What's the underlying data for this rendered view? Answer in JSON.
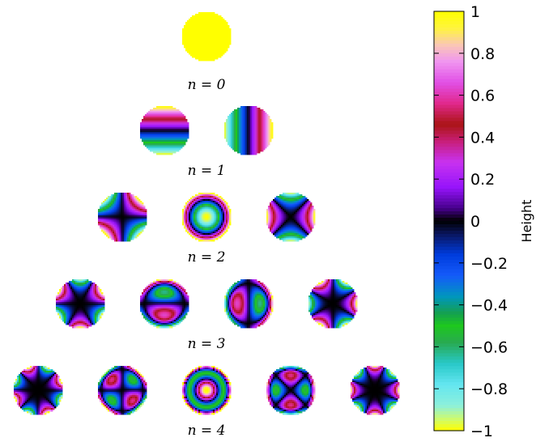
{
  "figure": {
    "rows": [
      {
        "label": "n = 0",
        "n": 0,
        "modes": [
          {
            "m": 0
          }
        ]
      },
      {
        "label": "n = 1",
        "n": 1,
        "modes": [
          {
            "m": -1
          },
          {
            "m": 1
          }
        ]
      },
      {
        "label": "n = 2",
        "n": 2,
        "modes": [
          {
            "m": -2
          },
          {
            "m": 0
          },
          {
            "m": 2
          }
        ]
      },
      {
        "label": "n = 3",
        "n": 3,
        "modes": [
          {
            "m": -3
          },
          {
            "m": -1
          },
          {
            "m": 1
          },
          {
            "m": 3
          }
        ]
      },
      {
        "label": "n = 4",
        "n": 4,
        "modes": [
          {
            "m": -4
          },
          {
            "m": -2
          },
          {
            "m": 0
          },
          {
            "m": 2
          },
          {
            "m": 4
          }
        ]
      }
    ]
  },
  "colorbar": {
    "label": "Height",
    "range": [
      -1,
      1
    ],
    "ticks": [
      {
        "value": 1,
        "label": "1"
      },
      {
        "value": 0.8,
        "label": "0.8"
      },
      {
        "value": 0.6,
        "label": "0.6"
      },
      {
        "value": 0.4,
        "label": "0.4"
      },
      {
        "value": 0.2,
        "label": "0.2"
      },
      {
        "value": 0,
        "label": "0"
      },
      {
        "value": -0.2,
        "label": "−0.2"
      },
      {
        "value": -0.4,
        "label": "−0.4"
      },
      {
        "value": -0.6,
        "label": "−0.6"
      },
      {
        "value": -0.8,
        "label": "−0.8"
      },
      {
        "value": -1,
        "label": "−1"
      }
    ],
    "colormap": "gist_ncar_r"
  }
}
